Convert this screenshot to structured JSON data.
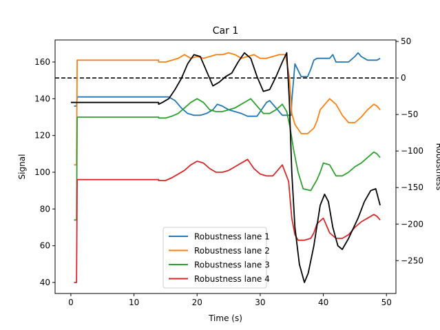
{
  "chart_data": {
    "type": "line",
    "title": "Car 1",
    "xlabel": "Time (s)",
    "ylabel_left": "Signal",
    "ylabel_right": "Robustness",
    "xlim": [
      -2.5,
      51.5
    ],
    "ylim_left": [
      34,
      172
    ],
    "ylim_right": [
      -295,
      52
    ],
    "xticks": [
      0,
      10,
      20,
      30,
      40,
      50
    ],
    "yticks_left": [
      40,
      60,
      80,
      100,
      120,
      140,
      160
    ],
    "yticks_right": [
      -250,
      -200,
      -150,
      -100,
      -50,
      0,
      50
    ],
    "legend_position": "lower-center",
    "reference_line": {
      "axis": "right",
      "y": 0,
      "color": "#000000",
      "style": "dashed"
    },
    "signal_series": {
      "color": "#000000",
      "axis": "left",
      "points": [
        [
          0,
          138
        ],
        [
          13.9,
          138
        ],
        [
          13.9,
          137
        ],
        [
          14.5,
          138
        ],
        [
          15.5,
          140
        ],
        [
          16.5,
          145
        ],
        [
          17.5,
          151
        ],
        [
          18.5,
          159
        ],
        [
          19.5,
          164
        ],
        [
          20.5,
          163
        ],
        [
          21.5,
          155
        ],
        [
          22.5,
          147
        ],
        [
          23.5,
          149
        ],
        [
          24.5,
          152
        ],
        [
          25.5,
          154
        ],
        [
          26.5,
          160
        ],
        [
          27.5,
          165
        ],
        [
          28.5,
          162
        ],
        [
          29.5,
          152
        ],
        [
          30.5,
          144
        ],
        [
          31.5,
          145
        ],
        [
          32.5,
          152
        ],
        [
          33.5,
          160
        ],
        [
          34.2,
          165
        ],
        [
          34.6,
          140
        ],
        [
          35,
          100
        ],
        [
          35.5,
          70
        ],
        [
          36.2,
          50
        ],
        [
          37,
          40
        ],
        [
          37.6,
          45
        ],
        [
          38.5,
          60
        ],
        [
          39.5,
          82
        ],
        [
          40.2,
          88
        ],
        [
          40.8,
          84
        ],
        [
          41.5,
          70
        ],
        [
          42.3,
          60
        ],
        [
          43,
          58
        ],
        [
          44,
          64
        ],
        [
          45.5,
          75
        ],
        [
          46.5,
          84
        ],
        [
          47.5,
          90
        ],
        [
          48.3,
          91
        ],
        [
          49,
          82
        ]
      ]
    },
    "series": [
      {
        "name": "Robustness lane 1",
        "color": "#1f77b4",
        "axis": "left",
        "points": [
          [
            0.5,
            136
          ],
          [
            0.9,
            136
          ],
          [
            1,
            141
          ],
          [
            10,
            141
          ],
          [
            15.5,
            141
          ],
          [
            16.5,
            139
          ],
          [
            17.5,
            135
          ],
          [
            18.5,
            132
          ],
          [
            19.5,
            131
          ],
          [
            20.5,
            131
          ],
          [
            21.5,
            132
          ],
          [
            22.5,
            134
          ],
          [
            23.2,
            137
          ],
          [
            24,
            136
          ],
          [
            25,
            134
          ],
          [
            26,
            133
          ],
          [
            27,
            132
          ],
          [
            28,
            130.5
          ],
          [
            29.5,
            130.5
          ],
          [
            30,
            133
          ],
          [
            31,
            138
          ],
          [
            31.5,
            139
          ],
          [
            32,
            137
          ],
          [
            33,
            133
          ],
          [
            33.5,
            131
          ],
          [
            34.9,
            131
          ],
          [
            35,
            139
          ],
          [
            35.5,
            159
          ],
          [
            36.5,
            152
          ],
          [
            37.5,
            152
          ],
          [
            38,
            156
          ],
          [
            38.5,
            161
          ],
          [
            39,
            162
          ],
          [
            41,
            162
          ],
          [
            41.5,
            164
          ],
          [
            42,
            160
          ],
          [
            43,
            160
          ],
          [
            44,
            160
          ],
          [
            45,
            163
          ],
          [
            45.5,
            165
          ],
          [
            46,
            163
          ],
          [
            47,
            161
          ],
          [
            48,
            161
          ],
          [
            48.5,
            161
          ],
          [
            49,
            162
          ]
        ]
      },
      {
        "name": "Robustness lane 2",
        "color": "#ff7f0e",
        "axis": "left",
        "points": [
          [
            0.5,
            104
          ],
          [
            0.9,
            104
          ],
          [
            1,
            161
          ],
          [
            10,
            161
          ],
          [
            13.9,
            161
          ],
          [
            13.9,
            160
          ],
          [
            15,
            160
          ],
          [
            16,
            161
          ],
          [
            17,
            162
          ],
          [
            18,
            164
          ],
          [
            19,
            162
          ],
          [
            20,
            163
          ],
          [
            21,
            162
          ],
          [
            22,
            163
          ],
          [
            23,
            164
          ],
          [
            24,
            164
          ],
          [
            25,
            165
          ],
          [
            26,
            164
          ],
          [
            27,
            162
          ],
          [
            28,
            163
          ],
          [
            29,
            164
          ],
          [
            30,
            162
          ],
          [
            31,
            162
          ],
          [
            32,
            163
          ],
          [
            33,
            164
          ],
          [
            34,
            164
          ],
          [
            34.6,
            152
          ],
          [
            35,
            132
          ],
          [
            35.5,
            126
          ],
          [
            36.5,
            121
          ],
          [
            37.5,
            121
          ],
          [
            38.5,
            124
          ],
          [
            39,
            128
          ],
          [
            39.5,
            134
          ],
          [
            40,
            136
          ],
          [
            41,
            140
          ],
          [
            42,
            137
          ],
          [
            43,
            131
          ],
          [
            44,
            127
          ],
          [
            45,
            127
          ],
          [
            46,
            130
          ],
          [
            47,
            134
          ],
          [
            48,
            137
          ],
          [
            48.5,
            136
          ],
          [
            49,
            134
          ]
        ]
      },
      {
        "name": "Robustness lane 3",
        "color": "#2ca02c",
        "axis": "left",
        "points": [
          [
            0.5,
            74
          ],
          [
            0.9,
            74
          ],
          [
            1,
            130
          ],
          [
            10,
            130
          ],
          [
            13.9,
            130
          ],
          [
            13.9,
            129.5
          ],
          [
            15,
            129.5
          ],
          [
            16,
            130.5
          ],
          [
            17,
            132
          ],
          [
            18,
            135
          ],
          [
            19,
            138
          ],
          [
            20,
            140
          ],
          [
            21,
            138
          ],
          [
            22,
            134
          ],
          [
            23,
            133
          ],
          [
            24,
            133
          ],
          [
            25,
            134
          ],
          [
            26,
            135
          ],
          [
            27,
            137
          ],
          [
            28,
            139
          ],
          [
            28.5,
            140
          ],
          [
            29.5,
            136
          ],
          [
            30.5,
            132
          ],
          [
            31.5,
            132
          ],
          [
            32.5,
            134
          ],
          [
            33.5,
            137
          ],
          [
            34.2,
            133
          ],
          [
            34.7,
            125
          ],
          [
            35.3,
            112
          ],
          [
            36,
            100
          ],
          [
            36.8,
            91
          ],
          [
            38,
            90
          ],
          [
            39,
            96
          ],
          [
            39.5,
            100
          ],
          [
            40,
            105
          ],
          [
            41,
            104
          ],
          [
            42,
            98
          ],
          [
            43,
            98
          ],
          [
            44,
            100
          ],
          [
            45,
            103
          ],
          [
            46,
            105
          ],
          [
            47,
            108
          ],
          [
            48,
            111
          ],
          [
            48.5,
            110
          ],
          [
            49,
            108
          ]
        ]
      },
      {
        "name": "Robustness lane 4",
        "color": "#d62728",
        "axis": "left",
        "points": [
          [
            0.5,
            40
          ],
          [
            0.9,
            40
          ],
          [
            1,
            96
          ],
          [
            10,
            96
          ],
          [
            13.9,
            96
          ],
          [
            13.9,
            95.5
          ],
          [
            15,
            95.5
          ],
          [
            16,
            97
          ],
          [
            17,
            99
          ],
          [
            18,
            101
          ],
          [
            19,
            104
          ],
          [
            20,
            106
          ],
          [
            21,
            105
          ],
          [
            22,
            102
          ],
          [
            23,
            100
          ],
          [
            24,
            100
          ],
          [
            25,
            101
          ],
          [
            26,
            103
          ],
          [
            27,
            105
          ],
          [
            28,
            107
          ],
          [
            29,
            102
          ],
          [
            30,
            99
          ],
          [
            31,
            98
          ],
          [
            32,
            98
          ],
          [
            33,
            102
          ],
          [
            33.5,
            104
          ],
          [
            34.5,
            95
          ],
          [
            35,
            75
          ],
          [
            35.5,
            66
          ],
          [
            36,
            63
          ],
          [
            37,
            63
          ],
          [
            38,
            64
          ],
          [
            38.5,
            67
          ],
          [
            39,
            72
          ],
          [
            40,
            75
          ],
          [
            41,
            67
          ],
          [
            42,
            64
          ],
          [
            43,
            64
          ],
          [
            44,
            66
          ],
          [
            45,
            70
          ],
          [
            46,
            73
          ],
          [
            47,
            75
          ],
          [
            48,
            77
          ],
          [
            48.5,
            76
          ],
          [
            49,
            74
          ]
        ]
      }
    ]
  }
}
